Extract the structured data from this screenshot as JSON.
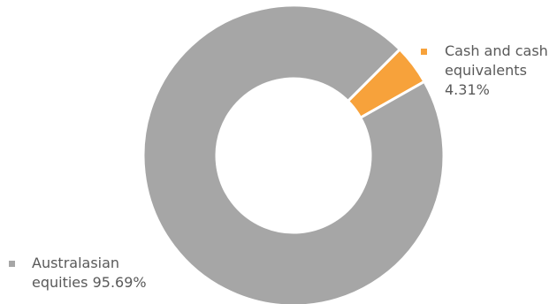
{
  "chart_data": {
    "type": "pie",
    "variant": "donut",
    "categories": [
      "Cash and cash equivalents",
      "Australasian equities"
    ],
    "values": [
      4.31,
      95.69
    ],
    "units": "%",
    "value_labels": [
      "4.31%",
      "95.69%"
    ],
    "colors": [
      "#f7a23b",
      "#a6a6a6"
    ],
    "title": "",
    "legend": "labels beside slices"
  },
  "labels": {
    "cash_name": "Cash and cash equivalents",
    "cash_value": "4.31%",
    "aus_name": "Australasian equities",
    "aus_value": "95.69%"
  }
}
